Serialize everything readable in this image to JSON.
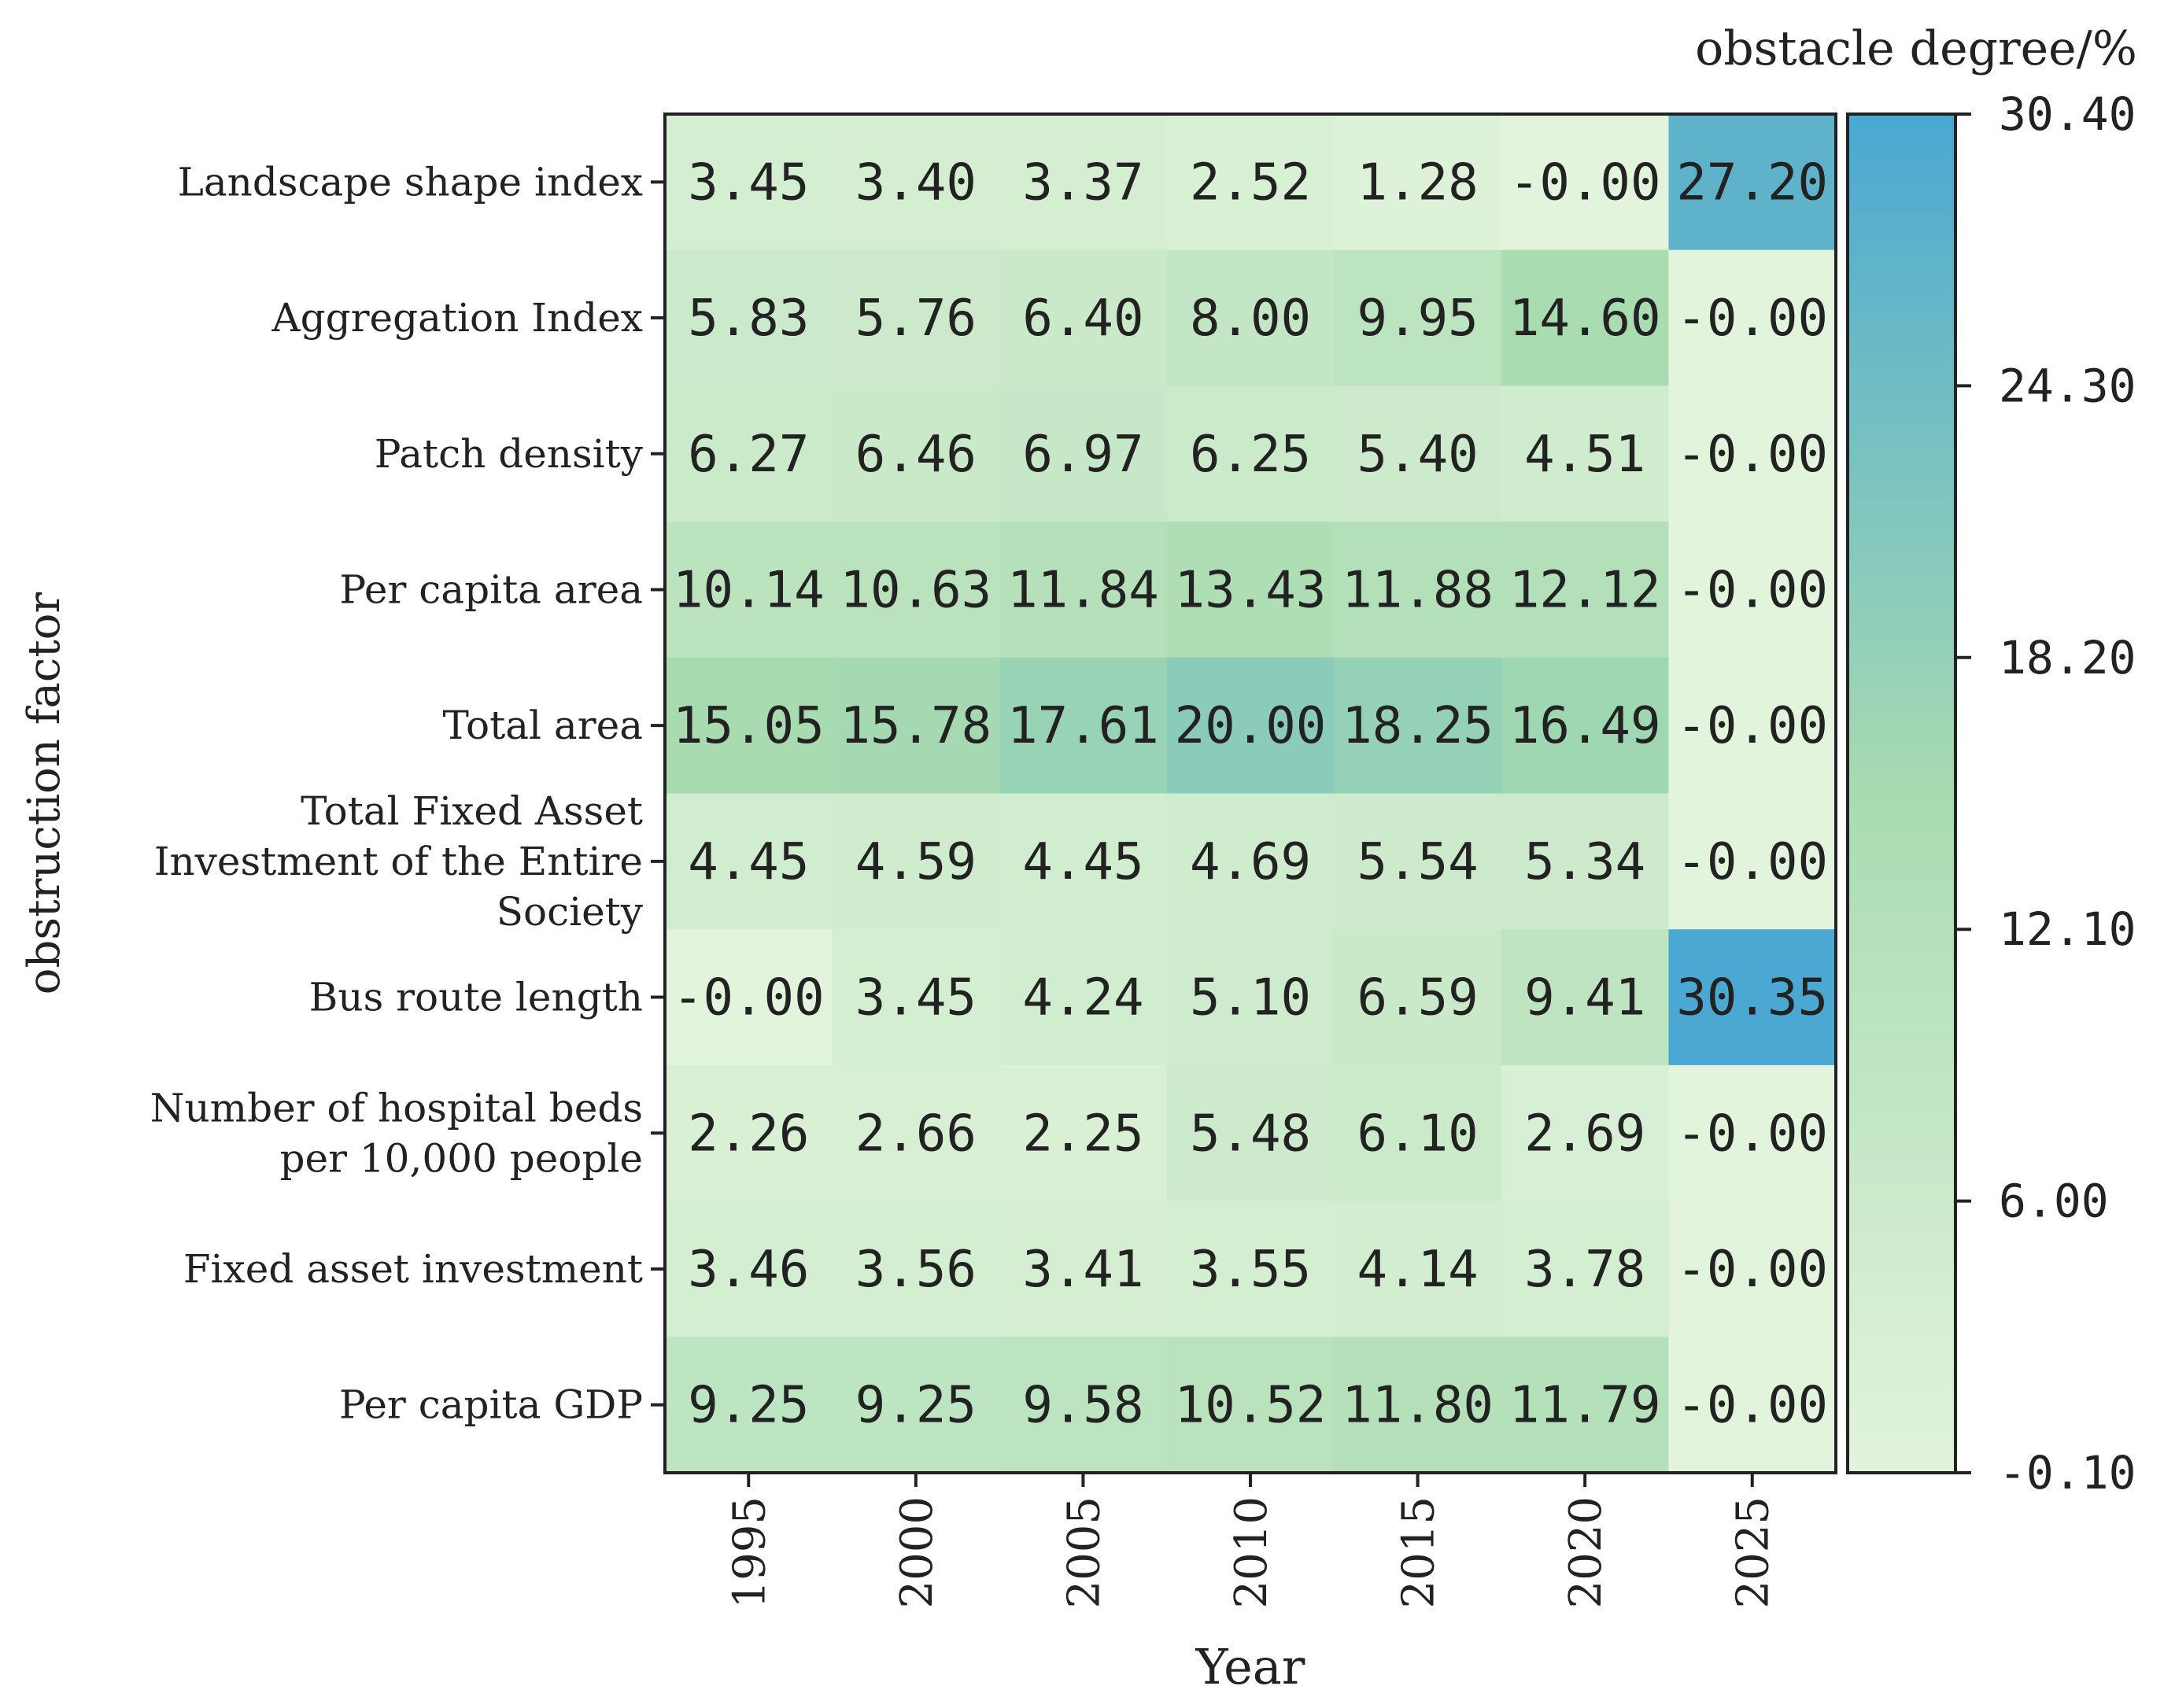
{
  "chart_data": {
    "type": "heatmap",
    "xlabel": "Year",
    "ylabel": "obstruction factor",
    "colorbar_title": "obstacle degree/%",
    "x_categories": [
      "1995",
      "2000",
      "2005",
      "2010",
      "2015",
      "2020",
      "2025"
    ],
    "y_categories": [
      [
        "Landscape shape index"
      ],
      [
        "Aggregation Index"
      ],
      [
        "Patch density"
      ],
      [
        "Per capita area"
      ],
      [
        "Total area"
      ],
      [
        "Total Fixed Asset",
        "Investment of the Entire",
        "Society"
      ],
      [
        "Bus route length"
      ],
      [
        "Number of hospital beds",
        "per 10,000 people"
      ],
      [
        "Fixed asset investment"
      ],
      [
        "Per capita GDP"
      ]
    ],
    "values": [
      [
        3.45,
        3.4,
        3.37,
        2.52,
        1.28,
        -0.0,
        27.2
      ],
      [
        5.83,
        5.76,
        6.4,
        8.0,
        9.95,
        14.6,
        -0.0
      ],
      [
        6.27,
        6.46,
        6.97,
        6.25,
        5.4,
        4.51,
        -0.0
      ],
      [
        10.14,
        10.63,
        11.84,
        13.43,
        11.88,
        12.12,
        -0.0
      ],
      [
        15.05,
        15.78,
        17.61,
        20.0,
        18.25,
        16.49,
        -0.0
      ],
      [
        4.45,
        4.59,
        4.45,
        4.69,
        5.54,
        5.34,
        -0.0
      ],
      [
        -0.0,
        3.45,
        4.24,
        5.1,
        6.59,
        9.41,
        30.35
      ],
      [
        2.26,
        2.66,
        2.25,
        5.48,
        6.1,
        2.69,
        -0.0
      ],
      [
        3.46,
        3.56,
        3.41,
        3.55,
        4.14,
        3.78,
        -0.0
      ],
      [
        9.25,
        9.25,
        9.58,
        10.52,
        11.8,
        11.79,
        -0.0
      ]
    ],
    "colorbar": {
      "min": -0.1,
      "max": 30.4,
      "ticks": [
        "30.40",
        "24.30",
        "18.20",
        "12.10",
        "6.00",
        "-0.10"
      ],
      "colors": [
        "#e2f4dc",
        "#a8dbb0",
        "#4aa8d2"
      ]
    },
    "cell_label_decimals": 2
  }
}
